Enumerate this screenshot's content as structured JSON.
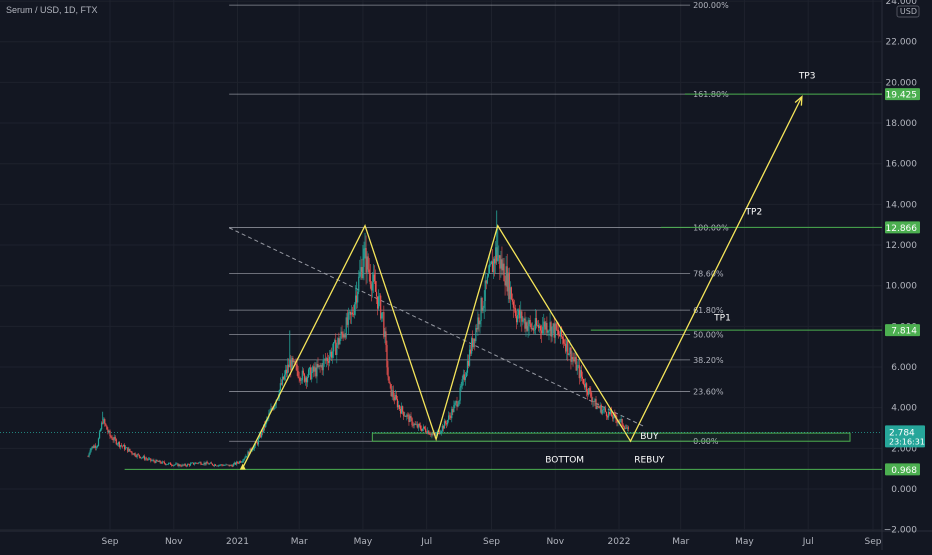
{
  "header": {
    "title": "Serum / USD, 1D, FTX"
  },
  "chart_data": {
    "type": "candlestick",
    "currency": "USD",
    "ylim": [
      -2,
      24
    ],
    "y_ticks": [
      -2,
      0,
      2,
      4,
      6,
      8,
      10,
      12,
      14,
      16,
      18,
      20,
      22,
      24
    ],
    "y_tick_labels": [
      "−2.000",
      "0.000",
      "2.000",
      "4.000",
      "6.000",
      "8.000",
      "10.000",
      "12.000",
      "14.000",
      "16.000",
      "18.000",
      "20.000",
      "22.000",
      "24.000"
    ],
    "x_ticks": [
      {
        "date": "2020-09-01",
        "label": "Sep"
      },
      {
        "date": "2020-11-01",
        "label": "Nov"
      },
      {
        "date": "2021-01-01",
        "label": "2021"
      },
      {
        "date": "2021-03-01",
        "label": "Mar"
      },
      {
        "date": "2021-05-01",
        "label": "May"
      },
      {
        "date": "2021-07-01",
        "label": "Jul"
      },
      {
        "date": "2021-09-01",
        "label": "Sep"
      },
      {
        "date": "2021-11-01",
        "label": "Nov"
      },
      {
        "date": "2022-01-01",
        "label": "2022"
      },
      {
        "date": "2022-03-01",
        "label": "Mar"
      },
      {
        "date": "2022-05-01",
        "label": "May"
      },
      {
        "date": "2022-07-01",
        "label": "Jul"
      },
      {
        "date": "2022-09-01",
        "label": "Sep"
      }
    ],
    "price_path": [
      [
        "2020-08-11",
        1.6
      ],
      [
        "2020-08-13",
        2.0
      ],
      [
        "2020-08-20",
        2.2
      ],
      [
        "2020-08-25",
        3.4
      ],
      [
        "2020-09-01",
        2.6
      ],
      [
        "2020-09-10",
        2.2
      ],
      [
        "2020-09-25",
        1.7
      ],
      [
        "2020-10-10",
        1.4
      ],
      [
        "2020-10-25",
        1.25
      ],
      [
        "2020-11-10",
        1.15
      ],
      [
        "2020-11-25",
        1.3
      ],
      [
        "2020-12-10",
        1.2
      ],
      [
        "2020-12-26",
        1.15
      ],
      [
        "2021-01-05",
        1.4
      ],
      [
        "2021-01-20",
        2.3
      ],
      [
        "2021-02-05",
        4.2
      ],
      [
        "2021-02-20",
        6.2
      ],
      [
        "2021-03-05",
        5.5
      ],
      [
        "2021-03-20",
        5.9
      ],
      [
        "2021-04-05",
        7.0
      ],
      [
        "2021-04-20",
        8.5
      ],
      [
        "2021-05-02",
        11.5
      ],
      [
        "2021-05-10",
        10.2
      ],
      [
        "2021-05-20",
        8.5
      ],
      [
        "2021-05-26",
        5.0
      ],
      [
        "2021-06-05",
        4.0
      ],
      [
        "2021-06-20",
        3.1
      ],
      [
        "2021-07-01",
        2.9
      ],
      [
        "2021-07-09",
        2.6
      ],
      [
        "2021-07-20",
        3.3
      ],
      [
        "2021-08-01",
        4.5
      ],
      [
        "2021-08-15",
        7.5
      ],
      [
        "2021-08-25",
        9.5
      ],
      [
        "2021-09-05",
        11.6
      ],
      [
        "2021-09-15",
        10.5
      ],
      [
        "2021-09-25",
        8.6
      ],
      [
        "2021-10-10",
        7.9
      ],
      [
        "2021-10-25",
        8.1
      ],
      [
        "2021-11-10",
        7.3
      ],
      [
        "2021-11-25",
        5.6
      ],
      [
        "2021-12-10",
        4.1
      ],
      [
        "2021-12-25",
        3.6
      ],
      [
        "2022-01-05",
        3.2
      ],
      [
        "2022-01-10",
        2.8
      ]
    ],
    "spike_highs": [
      [
        "2020-08-25",
        3.8
      ],
      [
        "2021-02-20",
        7.8
      ],
      [
        "2021-05-01",
        12.0
      ],
      [
        "2021-05-03",
        12.6
      ],
      [
        "2021-09-06",
        13.7
      ],
      [
        "2021-09-07",
        12.8
      ],
      [
        "2021-04-25",
        10.2
      ]
    ],
    "fibonacci": {
      "levels": [
        {
          "label": "200.00%",
          "value": 23.8
        },
        {
          "label": "161.80%",
          "value": 19.425
        },
        {
          "label": "100.00%",
          "value": 12.866
        },
        {
          "label": "78.60%",
          "value": 10.6
        },
        {
          "label": "61.80%",
          "value": 8.8
        },
        {
          "label": "50.00%",
          "value": 7.6
        },
        {
          "label": "38.20%",
          "value": 6.35
        },
        {
          "label": "23.60%",
          "value": 4.8
        },
        {
          "label": "0.00%",
          "value": 2.35
        }
      ],
      "start_date": "2020-12-24",
      "end_date": "2022-03-10"
    },
    "zigzag": [
      [
        "2021-01-06",
        1.05
      ],
      [
        "2021-05-03",
        12.95
      ],
      [
        "2021-07-10",
        2.45
      ],
      [
        "2021-09-07",
        12.95
      ],
      [
        "2022-01-12",
        2.35
      ],
      [
        "2022-06-25",
        19.3
      ]
    ],
    "trendline": {
      "from": [
        "2020-12-24",
        12.85
      ],
      "to": [
        "2022-01-24",
        3.1
      ]
    },
    "buy_zone": {
      "from": "2021-05-10",
      "to": "2022-08-10",
      "low": 2.35,
      "high": 2.75
    },
    "bottom_line": {
      "from": "2020-09-15",
      "value": 0.968
    },
    "tp_lines": [
      {
        "from": "2022-03-05",
        "value": 19.425
      },
      {
        "from": "2022-02-10",
        "value": 12.866
      },
      {
        "from": "2021-12-05",
        "value": 7.814
      }
    ],
    "annotations": [
      {
        "text": "TP3",
        "date": "2022-06-30",
        "value": 20.2
      },
      {
        "text": "TP2",
        "date": "2022-05-10",
        "value": 13.5
      },
      {
        "text": "TP1",
        "date": "2022-04-10",
        "value": 8.3
      },
      {
        "text": "BUY",
        "date": "2022-01-30",
        "value": 2.45
      },
      {
        "text": "BOTTOM",
        "date": "2021-11-10",
        "value": 1.3
      },
      {
        "text": "REBUY",
        "date": "2022-01-30",
        "value": 1.3
      }
    ],
    "price_labels": [
      {
        "text": "19.425",
        "value": 19.425,
        "color": "#4caf50"
      },
      {
        "text": "12.866",
        "value": 12.866,
        "color": "#4caf50"
      },
      {
        "text": "7.814",
        "value": 7.814,
        "color": "#4caf50"
      },
      {
        "text": "0.968",
        "value": 0.968,
        "color": "#4caf50"
      }
    ],
    "current_price": {
      "text": "2.784",
      "countdown": "23:16:31",
      "value": 2.784,
      "color": "#26a69a"
    },
    "colors": {
      "background": "#131722",
      "grid": "#1e222d",
      "up": "#26a69a",
      "down": "#ef5350",
      "fib": "#b2b5be",
      "zigzag": "#f5e55a",
      "green_line": "#4caf50",
      "trend": "#9598a1"
    }
  }
}
